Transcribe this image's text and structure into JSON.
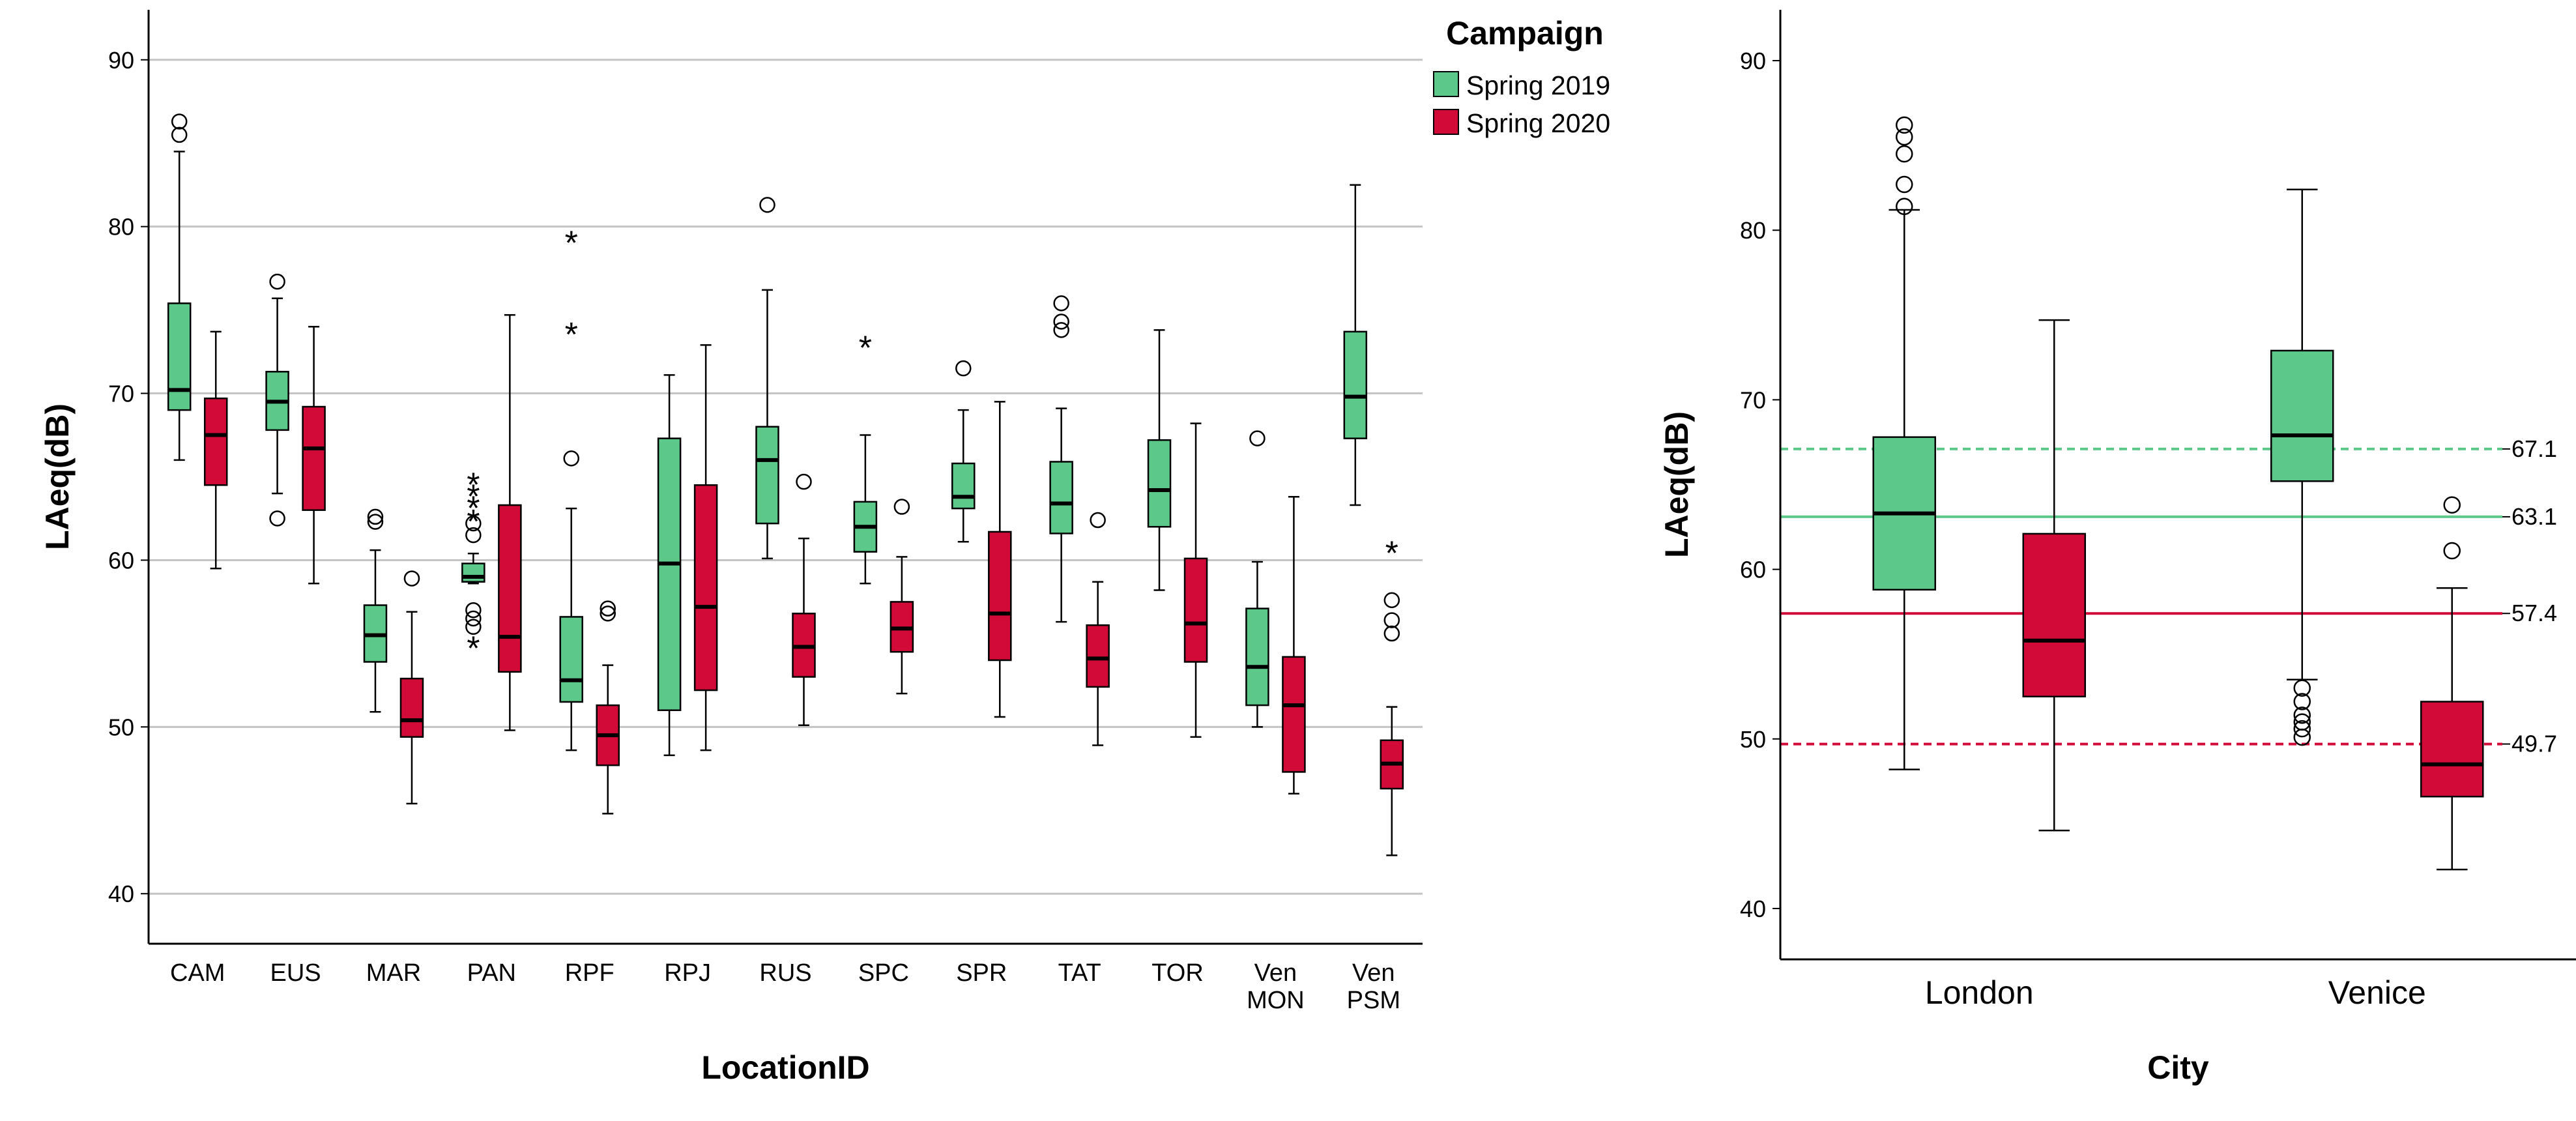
{
  "colors": {
    "spring2019": "#5cc98a",
    "spring2020": "#d10a37",
    "grid": "#c4c4c4",
    "axis": "#000000"
  },
  "legend": {
    "title": "Campaign",
    "items": [
      {
        "label": "Spring 2019",
        "color": "#5cc98a"
      },
      {
        "label": "Spring 2020",
        "color": "#d10a37"
      }
    ]
  },
  "chart_data": [
    {
      "type": "box",
      "title": "",
      "xlabel": "LocationID",
      "ylabel": "LAeq(dB)",
      "ylim": [
        37,
        93
      ],
      "yticks": [
        40,
        50,
        60,
        70,
        80,
        90
      ],
      "grid": true,
      "legend_position": "top-right",
      "categories": [
        {
          "lines": [
            "CAM"
          ]
        },
        {
          "lines": [
            "EUS"
          ]
        },
        {
          "lines": [
            "MAR"
          ]
        },
        {
          "lines": [
            "PAN"
          ]
        },
        {
          "lines": [
            "RPF"
          ]
        },
        {
          "lines": [
            "RPJ"
          ]
        },
        {
          "lines": [
            "RUS"
          ]
        },
        {
          "lines": [
            "SPC"
          ]
        },
        {
          "lines": [
            "SPR"
          ]
        },
        {
          "lines": [
            "TAT"
          ]
        },
        {
          "lines": [
            "TOR"
          ]
        },
        {
          "lines": [
            "Ven",
            "MON"
          ]
        },
        {
          "lines": [
            "Ven",
            "PSM"
          ]
        }
      ],
      "series": [
        {
          "name": "Spring 2019",
          "color": "#5cc98a",
          "boxes": [
            {
              "min": 66.0,
              "q1": 69.0,
              "median": 70.2,
              "q3": 75.4,
              "max": 84.5,
              "outliers": [
                85.5,
                86.3
              ],
              "extremes": []
            },
            {
              "min": 64.0,
              "q1": 67.8,
              "median": 69.5,
              "q3": 71.3,
              "max": 75.7,
              "outliers": [
                62.5,
                76.7
              ],
              "extremes": []
            },
            {
              "min": 50.9,
              "q1": 53.9,
              "median": 55.5,
              "q3": 57.3,
              "max": 60.6,
              "outliers": [
                62.3,
                62.6
              ],
              "extremes": []
            },
            {
              "min": 58.6,
              "q1": 58.7,
              "median": 59.0,
              "q3": 59.8,
              "max": 60.4,
              "outliers": [
                56.0,
                56.5,
                57.0,
                61.5,
                62.2
              ],
              "extremes": [
                55.2,
                62.8,
                63.6,
                64.3,
                65.0
              ]
            },
            {
              "min": 48.6,
              "q1": 51.5,
              "median": 52.8,
              "q3": 56.6,
              "max": 63.1,
              "outliers": [
                66.1
              ],
              "extremes": [
                74.0,
                79.5
              ]
            },
            {
              "min": 48.3,
              "q1": 51.0,
              "median": 59.8,
              "q3": 67.3,
              "max": 71.1,
              "outliers": [],
              "extremes": []
            },
            {
              "min": 60.1,
              "q1": 62.2,
              "median": 66.0,
              "q3": 68.0,
              "max": 76.2,
              "outliers": [
                81.3
              ],
              "extremes": []
            },
            {
              "min": 58.6,
              "q1": 60.5,
              "median": 62.0,
              "q3": 63.5,
              "max": 67.5,
              "outliers": [],
              "extremes": [
                73.2
              ]
            },
            {
              "min": 61.1,
              "q1": 63.1,
              "median": 63.8,
              "q3": 65.8,
              "max": 69.0,
              "outliers": [
                71.5
              ],
              "extremes": []
            },
            {
              "min": 56.3,
              "q1": 61.6,
              "median": 63.4,
              "q3": 65.9,
              "max": 69.1,
              "outliers": [
                73.8,
                74.3,
                75.4
              ],
              "extremes": []
            },
            {
              "min": 58.2,
              "q1": 62.0,
              "median": 64.2,
              "q3": 67.2,
              "max": 73.8,
              "outliers": [],
              "extremes": []
            },
            {
              "min": 50.0,
              "q1": 51.3,
              "median": 53.6,
              "q3": 57.1,
              "max": 59.9,
              "outliers": [
                67.3
              ],
              "extremes": []
            },
            {
              "min": 63.3,
              "q1": 67.3,
              "median": 69.8,
              "q3": 73.7,
              "max": 82.5,
              "outliers": [],
              "extremes": []
            }
          ]
        },
        {
          "name": "Spring 2020",
          "color": "#d10a37",
          "boxes": [
            {
              "min": 59.5,
              "q1": 64.5,
              "median": 67.5,
              "q3": 69.7,
              "max": 73.7,
              "outliers": [],
              "extremes": []
            },
            {
              "min": 58.6,
              "q1": 63.0,
              "median": 66.7,
              "q3": 69.2,
              "max": 74.0,
              "outliers": [],
              "extremes": []
            },
            {
              "min": 45.4,
              "q1": 49.4,
              "median": 50.4,
              "q3": 52.9,
              "max": 56.9,
              "outliers": [
                58.9
              ],
              "extremes": []
            },
            {
              "min": 49.8,
              "q1": 53.3,
              "median": 55.4,
              "q3": 63.3,
              "max": 74.7,
              "outliers": [],
              "extremes": []
            },
            {
              "min": 44.8,
              "q1": 47.7,
              "median": 49.5,
              "q3": 51.3,
              "max": 53.7,
              "outliers": [
                56.8,
                57.1
              ],
              "extremes": []
            },
            {
              "min": 48.6,
              "q1": 52.2,
              "median": 57.2,
              "q3": 64.5,
              "max": 72.9,
              "outliers": [],
              "extremes": []
            },
            {
              "min": 50.1,
              "q1": 53.0,
              "median": 54.8,
              "q3": 56.8,
              "max": 61.3,
              "outliers": [
                64.7
              ],
              "extremes": []
            },
            {
              "min": 52.0,
              "q1": 54.5,
              "median": 55.9,
              "q3": 57.5,
              "max": 60.2,
              "outliers": [
                63.2
              ],
              "extremes": []
            },
            {
              "min": 50.6,
              "q1": 54.0,
              "median": 56.8,
              "q3": 61.7,
              "max": 69.5,
              "outliers": [],
              "extremes": []
            },
            {
              "min": 48.9,
              "q1": 52.4,
              "median": 54.1,
              "q3": 56.1,
              "max": 58.7,
              "outliers": [
                62.4
              ],
              "extremes": []
            },
            {
              "min": 49.4,
              "q1": 53.9,
              "median": 56.2,
              "q3": 60.1,
              "max": 68.2,
              "outliers": [],
              "extremes": []
            },
            {
              "min": 46.0,
              "q1": 47.3,
              "median": 51.3,
              "q3": 54.2,
              "max": 63.8,
              "outliers": [],
              "extremes": []
            },
            {
              "min": 42.3,
              "q1": 46.3,
              "median": 47.8,
              "q3": 49.2,
              "max": 51.2,
              "outliers": [
                55.6,
                56.4,
                57.6
              ],
              "extremes": [
                60.9
              ]
            }
          ]
        }
      ]
    },
    {
      "type": "box",
      "title": "",
      "xlabel": "City",
      "ylabel": "LAeq(dB)",
      "ylim": [
        37,
        93
      ],
      "yticks": [
        40,
        50,
        60,
        70,
        80,
        90
      ],
      "grid": false,
      "categories": [
        {
          "lines": [
            "London"
          ]
        },
        {
          "lines": [
            "Venice"
          ]
        }
      ],
      "series": [
        {
          "name": "Spring 2019",
          "color": "#5cc98a",
          "boxes": [
            {
              "min": 48.2,
              "q1": 58.8,
              "median": 63.3,
              "q3": 67.8,
              "max": 81.2,
              "outliers": [
                81.4,
                82.7,
                84.5,
                85.5,
                86.2
              ],
              "extremes": []
            },
            {
              "min": 53.5,
              "q1": 65.2,
              "median": 67.9,
              "q3": 72.9,
              "max": 82.4,
              "outliers": [
                50.1,
                50.6,
                51.0,
                51.4,
                52.2,
                53.0
              ],
              "extremes": []
            }
          ]
        },
        {
          "name": "Spring 2020",
          "color": "#d10a37",
          "boxes": [
            {
              "min": 44.6,
              "q1": 52.5,
              "median": 55.8,
              "q3": 62.1,
              "max": 74.7,
              "outliers": [],
              "extremes": []
            },
            {
              "min": 42.3,
              "q1": 46.6,
              "median": 48.5,
              "q3": 52.2,
              "max": 58.9,
              "outliers": [
                61.1,
                63.8
              ],
              "extremes": []
            }
          ]
        }
      ],
      "reference_lines": [
        {
          "value": 67.1,
          "label": "67.1",
          "color": "#5cc98a",
          "style": "dashed"
        },
        {
          "value": 63.1,
          "label": "63.1",
          "color": "#5cc98a",
          "style": "solid"
        },
        {
          "value": 57.4,
          "label": "57.4",
          "color": "#d10a37",
          "style": "solid"
        },
        {
          "value": 49.7,
          "label": "49.7",
          "color": "#d10a37",
          "style": "dashed"
        }
      ]
    }
  ]
}
